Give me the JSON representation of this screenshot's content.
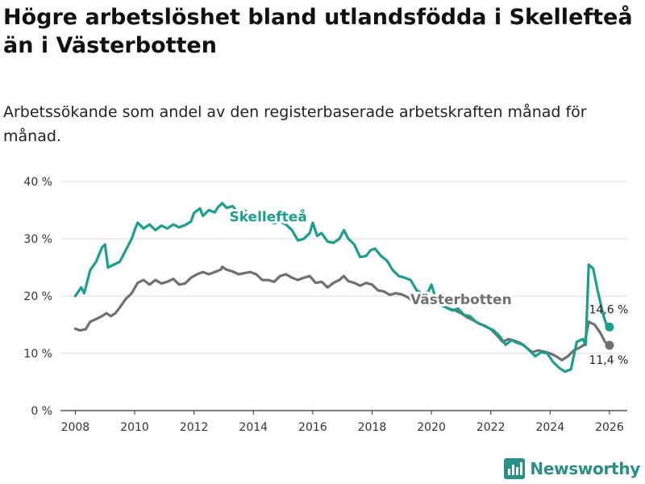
{
  "title": "Högre arbetslöshet bland utlandsfödda i Skellefteå än i Västerbotten",
  "subtitle": "Arbetssökande som andel av den registerbaserade arbetskraften månad för månad.",
  "brand": {
    "name": "Newsworthy",
    "color": "#2a8f86"
  },
  "chart_data": {
    "type": "line",
    "title": "Högre arbetslöshet bland utlandsfödda i Skellefteå än i Västerbotten",
    "subtitle": "Arbetssökande som andel av den registerbaserade arbetskraften månad för månad.",
    "xlabel": "",
    "ylabel": "",
    "xlim": [
      2007.5,
      2026.6
    ],
    "ylim": [
      0,
      40
    ],
    "x_ticks": [
      2008,
      2010,
      2012,
      2014,
      2016,
      2018,
      2020,
      2022,
      2024,
      2026
    ],
    "x_tick_labels": [
      "2008",
      "2010",
      "2012",
      "2014",
      "2016",
      "2018",
      "2020",
      "2022",
      "2024",
      "2026"
    ],
    "y_ticks": [
      0,
      10,
      20,
      30,
      40
    ],
    "y_tick_labels": [
      "0 %",
      "10 %",
      "20 %",
      "30 %",
      "40 %"
    ],
    "grid": "horizontal",
    "series": [
      {
        "name": "Skellefteå",
        "color": "#1a9e8f",
        "end_label": "14,6 %",
        "points": [
          [
            2008.0,
            20.0
          ],
          [
            2008.2,
            21.5
          ],
          [
            2008.3,
            20.5
          ],
          [
            2008.5,
            24.5
          ],
          [
            2008.7,
            26.0
          ],
          [
            2008.9,
            28.5
          ],
          [
            2009.0,
            29.0
          ],
          [
            2009.1,
            25.0
          ],
          [
            2009.3,
            25.5
          ],
          [
            2009.5,
            26.0
          ],
          [
            2009.7,
            28.0
          ],
          [
            2009.9,
            30.0
          ],
          [
            2010.0,
            31.5
          ],
          [
            2010.1,
            32.8
          ],
          [
            2010.3,
            31.8
          ],
          [
            2010.5,
            32.5
          ],
          [
            2010.7,
            31.5
          ],
          [
            2010.9,
            32.3
          ],
          [
            2011.1,
            31.8
          ],
          [
            2011.3,
            32.5
          ],
          [
            2011.5,
            32.0
          ],
          [
            2011.7,
            32.4
          ],
          [
            2011.9,
            33.0
          ],
          [
            2012.0,
            34.5
          ],
          [
            2012.2,
            35.3
          ],
          [
            2012.3,
            34.0
          ],
          [
            2012.5,
            35.0
          ],
          [
            2012.7,
            34.6
          ],
          [
            2012.8,
            35.5
          ],
          [
            2012.95,
            36.2
          ],
          [
            2013.1,
            35.4
          ],
          [
            2013.3,
            35.7
          ],
          [
            2013.5,
            34.5
          ],
          [
            2013.7,
            35.0
          ],
          [
            2013.9,
            34.0
          ],
          [
            2014.1,
            33.5
          ],
          [
            2014.3,
            33.8
          ],
          [
            2014.5,
            33.0
          ],
          [
            2014.7,
            32.7
          ],
          [
            2014.9,
            33.0
          ],
          [
            2015.1,
            32.5
          ],
          [
            2015.3,
            31.5
          ],
          [
            2015.5,
            29.7
          ],
          [
            2015.7,
            30.0
          ],
          [
            2015.9,
            31.0
          ],
          [
            2016.0,
            32.8
          ],
          [
            2016.15,
            30.5
          ],
          [
            2016.3,
            31.0
          ],
          [
            2016.5,
            29.5
          ],
          [
            2016.7,
            29.3
          ],
          [
            2016.9,
            30.0
          ],
          [
            2017.05,
            31.5
          ],
          [
            2017.2,
            30.0
          ],
          [
            2017.4,
            29.0
          ],
          [
            2017.6,
            26.8
          ],
          [
            2017.8,
            27.0
          ],
          [
            2017.95,
            28.0
          ],
          [
            2018.1,
            28.3
          ],
          [
            2018.3,
            27.0
          ],
          [
            2018.5,
            26.2
          ],
          [
            2018.7,
            24.5
          ],
          [
            2018.9,
            23.5
          ],
          [
            2019.1,
            23.2
          ],
          [
            2019.3,
            22.8
          ],
          [
            2019.5,
            21.0
          ],
          [
            2019.7,
            20.5
          ],
          [
            2019.9,
            20.8
          ],
          [
            2020.0,
            22.0
          ],
          [
            2020.15,
            19.5
          ],
          [
            2020.3,
            18.5
          ],
          [
            2020.5,
            18.0
          ],
          [
            2020.7,
            17.5
          ],
          [
            2020.9,
            17.8
          ],
          [
            2021.1,
            16.7
          ],
          [
            2021.3,
            16.5
          ],
          [
            2021.5,
            15.5
          ],
          [
            2021.7,
            15.0
          ],
          [
            2021.9,
            14.5
          ],
          [
            2022.1,
            14.0
          ],
          [
            2022.3,
            13.0
          ],
          [
            2022.5,
            11.5
          ],
          [
            2022.7,
            12.3
          ],
          [
            2022.9,
            11.8
          ],
          [
            2023.1,
            11.5
          ],
          [
            2023.3,
            10.5
          ],
          [
            2023.5,
            9.5
          ],
          [
            2023.7,
            10.2
          ],
          [
            2023.9,
            10.0
          ],
          [
            2024.1,
            8.5
          ],
          [
            2024.3,
            7.5
          ],
          [
            2024.5,
            6.8
          ],
          [
            2024.7,
            7.2
          ],
          [
            2024.9,
            12.0
          ],
          [
            2025.1,
            12.5
          ],
          [
            2025.2,
            11.5
          ],
          [
            2025.3,
            25.5
          ],
          [
            2025.45,
            24.8
          ],
          [
            2025.6,
            21.0
          ],
          [
            2025.8,
            16.5
          ],
          [
            2025.9,
            15.0
          ],
          [
            2026.0,
            14.6
          ]
        ]
      },
      {
        "name": "Västerbotten",
        "color": "#707070",
        "end_label": "11,4 %",
        "points": [
          [
            2008.0,
            14.3
          ],
          [
            2008.15,
            14.0
          ],
          [
            2008.35,
            14.2
          ],
          [
            2008.5,
            15.5
          ],
          [
            2008.7,
            16.0
          ],
          [
            2008.9,
            16.5
          ],
          [
            2009.05,
            17.0
          ],
          [
            2009.2,
            16.5
          ],
          [
            2009.35,
            17.0
          ],
          [
            2009.5,
            18.0
          ],
          [
            2009.7,
            19.5
          ],
          [
            2009.9,
            20.5
          ],
          [
            2010.1,
            22.3
          ],
          [
            2010.3,
            22.8
          ],
          [
            2010.5,
            22.0
          ],
          [
            2010.7,
            22.8
          ],
          [
            2010.9,
            22.2
          ],
          [
            2011.1,
            22.5
          ],
          [
            2011.3,
            23.0
          ],
          [
            2011.5,
            22.0
          ],
          [
            2011.7,
            22.2
          ],
          [
            2011.9,
            23.2
          ],
          [
            2012.1,
            23.8
          ],
          [
            2012.3,
            24.2
          ],
          [
            2012.5,
            23.8
          ],
          [
            2012.7,
            24.2
          ],
          [
            2012.9,
            24.6
          ],
          [
            2012.95,
            25.1
          ],
          [
            2013.1,
            24.6
          ],
          [
            2013.3,
            24.3
          ],
          [
            2013.5,
            23.8
          ],
          [
            2013.7,
            24.0
          ],
          [
            2013.9,
            24.2
          ],
          [
            2014.1,
            23.8
          ],
          [
            2014.3,
            22.8
          ],
          [
            2014.5,
            22.8
          ],
          [
            2014.7,
            22.5
          ],
          [
            2014.9,
            23.5
          ],
          [
            2015.1,
            23.8
          ],
          [
            2015.3,
            23.2
          ],
          [
            2015.5,
            22.8
          ],
          [
            2015.7,
            23.2
          ],
          [
            2015.9,
            23.5
          ],
          [
            2016.1,
            22.3
          ],
          [
            2016.3,
            22.5
          ],
          [
            2016.5,
            21.5
          ],
          [
            2016.7,
            22.3
          ],
          [
            2016.9,
            22.8
          ],
          [
            2017.05,
            23.5
          ],
          [
            2017.2,
            22.6
          ],
          [
            2017.4,
            22.3
          ],
          [
            2017.6,
            21.8
          ],
          [
            2017.8,
            22.3
          ],
          [
            2018.0,
            22.0
          ],
          [
            2018.2,
            21.0
          ],
          [
            2018.4,
            20.8
          ],
          [
            2018.6,
            20.2
          ],
          [
            2018.8,
            20.5
          ],
          [
            2019.0,
            20.3
          ],
          [
            2019.2,
            19.8
          ],
          [
            2019.4,
            19.0
          ],
          [
            2019.6,
            19.5
          ],
          [
            2019.8,
            19.8
          ],
          [
            2020.0,
            20.0
          ],
          [
            2020.2,
            18.8
          ],
          [
            2020.4,
            18.2
          ],
          [
            2020.6,
            17.8
          ],
          [
            2020.8,
            17.5
          ],
          [
            2021.0,
            17.0
          ],
          [
            2021.2,
            16.3
          ],
          [
            2021.4,
            15.8
          ],
          [
            2021.6,
            15.2
          ],
          [
            2021.8,
            14.8
          ],
          [
            2022.0,
            14.2
          ],
          [
            2022.2,
            13.2
          ],
          [
            2022.4,
            12.0
          ],
          [
            2022.6,
            12.5
          ],
          [
            2022.8,
            12.2
          ],
          [
            2023.0,
            11.8
          ],
          [
            2023.2,
            11.0
          ],
          [
            2023.4,
            10.2
          ],
          [
            2023.6,
            10.5
          ],
          [
            2023.8,
            10.3
          ],
          [
            2024.0,
            10.0
          ],
          [
            2024.2,
            9.5
          ],
          [
            2024.4,
            8.8
          ],
          [
            2024.6,
            9.5
          ],
          [
            2024.8,
            10.5
          ],
          [
            2025.0,
            11.0
          ],
          [
            2025.15,
            11.5
          ],
          [
            2025.3,
            15.5
          ],
          [
            2025.5,
            15.0
          ],
          [
            2025.7,
            13.5
          ],
          [
            2025.85,
            12.0
          ],
          [
            2026.0,
            11.4
          ]
        ]
      }
    ],
    "series_labels": [
      {
        "series": "Skellefteå",
        "text": "Skellefteå",
        "x": 2014.5,
        "y": 33.0
      },
      {
        "series": "Västerbotten",
        "text": "Västerbotten",
        "x": 2021.0,
        "y": 18.6
      }
    ]
  }
}
